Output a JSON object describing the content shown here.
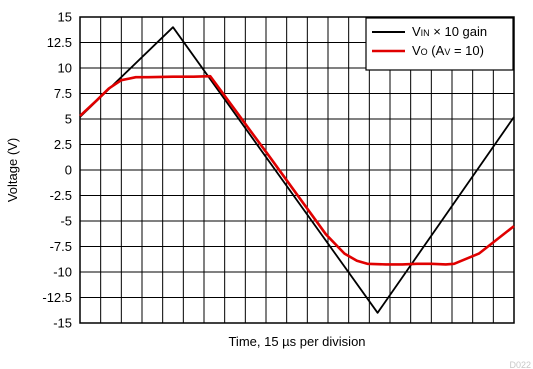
{
  "chart_data": {
    "type": "line",
    "xlabel": "Time, 15 µs per division",
    "ylabel": "Voltage (V)",
    "ylim": [
      -15,
      15
    ],
    "yticks": [
      "15",
      "12.5",
      "10",
      "7.5",
      "5",
      "2.5",
      "0",
      "-2.5",
      "-5",
      "-7.5",
      "-10",
      "-12.5",
      "-15"
    ],
    "xlim": [
      0,
      21
    ],
    "grid": true,
    "legend_position": "top-right",
    "series": [
      {
        "name": "VIN × 10 gain",
        "legend": {
          "main": "V",
          "sub": "IN",
          "rest": " × 10 gain"
        },
        "color": "#000000",
        "x": [
          0,
          4.5,
          14.4,
          21
        ],
        "y": [
          5.2,
          14,
          -14,
          5.2
        ]
      },
      {
        "name": "VO (AV = 10)",
        "legend": {
          "main": "V",
          "sub": "O",
          "rest": " (A",
          "sub2": "V",
          "rest2": " = 10)"
        },
        "color": "#e00000",
        "x": [
          0,
          0.8,
          1.4,
          2.0,
          2.7,
          3.3,
          4.5,
          5.5,
          6.3,
          7.5,
          8.3,
          9.1,
          11.9,
          12.8,
          13.4,
          13.9,
          14.8,
          15.6,
          16.3,
          17.0,
          17.7,
          18.1,
          19.3,
          21
        ],
        "y": [
          5.3,
          6.8,
          8.0,
          8.8,
          9.1,
          9.1,
          9.15,
          9.15,
          9.2,
          5.9,
          3.7,
          1.5,
          -6.3,
          -8.2,
          -8.9,
          -9.2,
          -9.25,
          -9.25,
          -9.2,
          -9.2,
          -9.25,
          -9.2,
          -8.2,
          -5.5
        ]
      }
    ]
  },
  "watermark": "D022"
}
